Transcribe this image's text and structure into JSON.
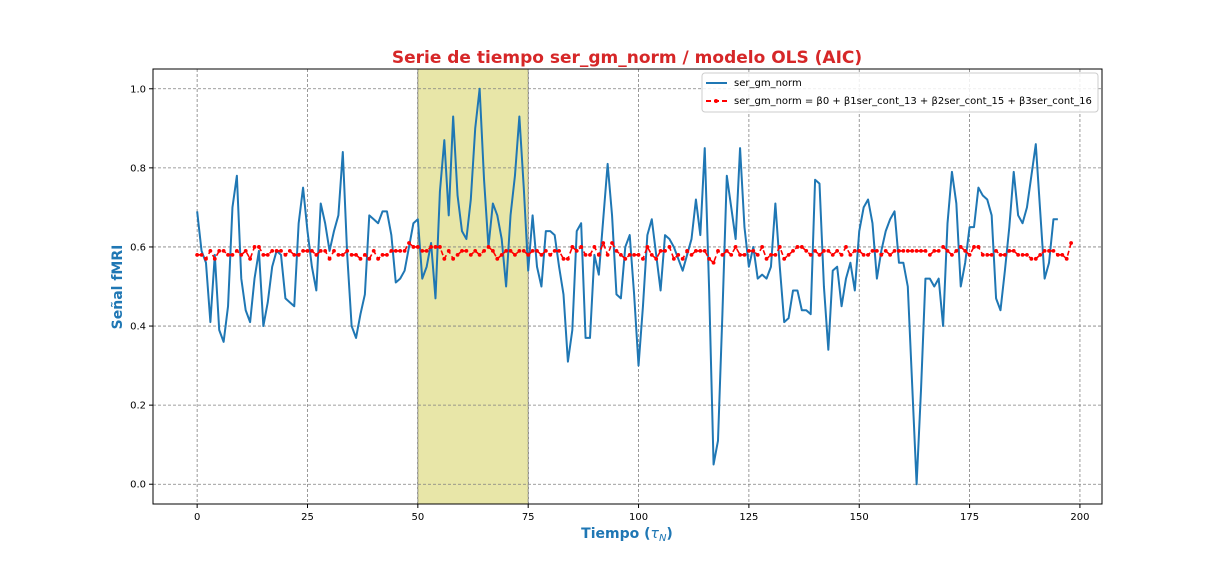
{
  "chart_data": {
    "type": "line",
    "title": "Serie de tiempo ser_gm_norm / modelo OLS (AIC)",
    "xlabel": "Tiempo (τ_N)",
    "xlabel_main": "Tiempo (",
    "xlabel_symbol": "τ",
    "xlabel_sub": "N",
    "xlabel_close": ")",
    "ylabel": "Señal fMRI",
    "xlim": [
      -10,
      205
    ],
    "ylim": [
      -0.05,
      1.05
    ],
    "xticks": [
      0,
      25,
      50,
      75,
      100,
      125,
      150,
      175,
      200
    ],
    "yticks": [
      0.0,
      0.2,
      0.4,
      0.6,
      0.8,
      1.0
    ],
    "xtick_labels": [
      "0",
      "25",
      "50",
      "75",
      "100",
      "125",
      "150",
      "175",
      "200"
    ],
    "ytick_labels": [
      "0.0",
      "0.2",
      "0.4",
      "0.6",
      "0.8",
      "1.0"
    ],
    "grid": true,
    "legend_position": "top-right",
    "highlight_region": {
      "x_start": 50,
      "x_end": 75,
      "color": "#e8e6a8"
    },
    "series": [
      {
        "name": "ser_gm_norm",
        "color": "#1f77b4",
        "style": "solid",
        "x_start": 0,
        "values": [
          0.69,
          0.59,
          0.56,
          0.41,
          0.58,
          0.39,
          0.36,
          0.45,
          0.7,
          0.78,
          0.52,
          0.44,
          0.41,
          0.52,
          0.59,
          0.4,
          0.46,
          0.55,
          0.59,
          0.58,
          0.47,
          0.46,
          0.45,
          0.66,
          0.75,
          0.64,
          0.55,
          0.49,
          0.71,
          0.66,
          0.59,
          0.64,
          0.68,
          0.84,
          0.58,
          0.4,
          0.37,
          0.43,
          0.48,
          0.68,
          0.67,
          0.66,
          0.69,
          0.69,
          0.63,
          0.51,
          0.52,
          0.54,
          0.6,
          0.66,
          0.67,
          0.52,
          0.55,
          0.61,
          0.47,
          0.74,
          0.87,
          0.68,
          0.93,
          0.73,
          0.64,
          0.62,
          0.72,
          0.9,
          1.0,
          0.77,
          0.6,
          0.71,
          0.68,
          0.62,
          0.5,
          0.68,
          0.78,
          0.93,
          0.75,
          0.54,
          0.68,
          0.55,
          0.5,
          0.64,
          0.64,
          0.63,
          0.55,
          0.48,
          0.31,
          0.39,
          0.64,
          0.66,
          0.37,
          0.37,
          0.58,
          0.53,
          0.67,
          0.81,
          0.68,
          0.48,
          0.47,
          0.6,
          0.63,
          0.48,
          0.3,
          0.45,
          0.63,
          0.67,
          0.58,
          0.49,
          0.63,
          0.62,
          0.6,
          0.57,
          0.54,
          0.58,
          0.62,
          0.72,
          0.63,
          0.85,
          0.49,
          0.05,
          0.11,
          0.43,
          0.78,
          0.7,
          0.62,
          0.85,
          0.65,
          0.55,
          0.6,
          0.52,
          0.53,
          0.52,
          0.55,
          0.71,
          0.55,
          0.41,
          0.42,
          0.49,
          0.49,
          0.44,
          0.44,
          0.43,
          0.77,
          0.76,
          0.5,
          0.34,
          0.54,
          0.55,
          0.45,
          0.52,
          0.56,
          0.49,
          0.64,
          0.7,
          0.72,
          0.66,
          0.52,
          0.59,
          0.64,
          0.67,
          0.69,
          0.56,
          0.56,
          0.5,
          0.25,
          0.0,
          0.24,
          0.52,
          0.52,
          0.5,
          0.52,
          0.4,
          0.66,
          0.79,
          0.71,
          0.5,
          0.56,
          0.65,
          0.65,
          0.75,
          0.73,
          0.72,
          0.68,
          0.47,
          0.44,
          0.54,
          0.65,
          0.79,
          0.68,
          0.66,
          0.7,
          0.78,
          0.86,
          0.69,
          0.52,
          0.56,
          0.67,
          0.67
        ]
      },
      {
        "name": "ser_gm_norm = β0 + β1ser_cont_13 + β2ser_cont_15 + β3ser_cont_16",
        "color": "#ff0000",
        "style": "dashed-markers",
        "x_start": 0,
        "values": [
          0.58,
          0.58,
          0.57,
          0.59,
          0.57,
          0.59,
          0.59,
          0.58,
          0.58,
          0.59,
          0.58,
          0.59,
          0.57,
          0.6,
          0.6,
          0.58,
          0.58,
          0.59,
          0.59,
          0.59,
          0.58,
          0.59,
          0.58,
          0.58,
          0.59,
          0.59,
          0.59,
          0.58,
          0.59,
          0.59,
          0.57,
          0.59,
          0.58,
          0.58,
          0.59,
          0.58,
          0.58,
          0.57,
          0.58,
          0.57,
          0.59,
          0.57,
          0.58,
          0.58,
          0.59,
          0.59,
          0.59,
          0.59,
          0.61,
          0.6,
          0.6,
          0.59,
          0.59,
          0.6,
          0.6,
          0.6,
          0.57,
          0.59,
          0.57,
          0.58,
          0.59,
          0.59,
          0.58,
          0.59,
          0.58,
          0.59,
          0.6,
          0.59,
          0.57,
          0.58,
          0.59,
          0.59,
          0.58,
          0.59,
          0.59,
          0.58,
          0.59,
          0.59,
          0.58,
          0.59,
          0.58,
          0.59,
          0.59,
          0.57,
          0.57,
          0.6,
          0.59,
          0.6,
          0.58,
          0.58,
          0.6,
          0.58,
          0.61,
          0.58,
          0.61,
          0.59,
          0.58,
          0.57,
          0.58,
          0.58,
          0.58,
          0.57,
          0.6,
          0.58,
          0.57,
          0.59,
          0.59,
          0.6,
          0.57,
          0.58,
          0.57,
          0.59,
          0.58,
          0.59,
          0.59,
          0.59,
          0.57,
          0.56,
          0.59,
          0.58,
          0.59,
          0.58,
          0.6,
          0.58,
          0.58,
          0.59,
          0.59,
          0.58,
          0.6,
          0.57,
          0.58,
          0.58,
          0.6,
          0.57,
          0.58,
          0.59,
          0.6,
          0.6,
          0.59,
          0.58,
          0.59,
          0.58,
          0.59,
          0.59,
          0.58,
          0.59,
          0.58,
          0.6,
          0.58,
          0.59,
          0.59,
          0.58,
          0.58,
          0.59,
          0.59,
          0.58,
          0.59,
          0.58,
          0.59,
          0.59,
          0.59,
          0.59,
          0.59,
          0.59,
          0.59,
          0.59,
          0.58,
          0.59,
          0.59,
          0.6,
          0.59,
          0.58,
          0.59,
          0.6,
          0.59,
          0.58,
          0.6,
          0.6,
          0.58,
          0.58,
          0.58,
          0.59,
          0.58,
          0.58,
          0.59,
          0.59,
          0.58,
          0.58,
          0.58,
          0.57,
          0.57,
          0.58,
          0.59,
          0.59,
          0.59,
          0.58,
          0.58,
          0.57,
          0.61
        ]
      }
    ]
  }
}
